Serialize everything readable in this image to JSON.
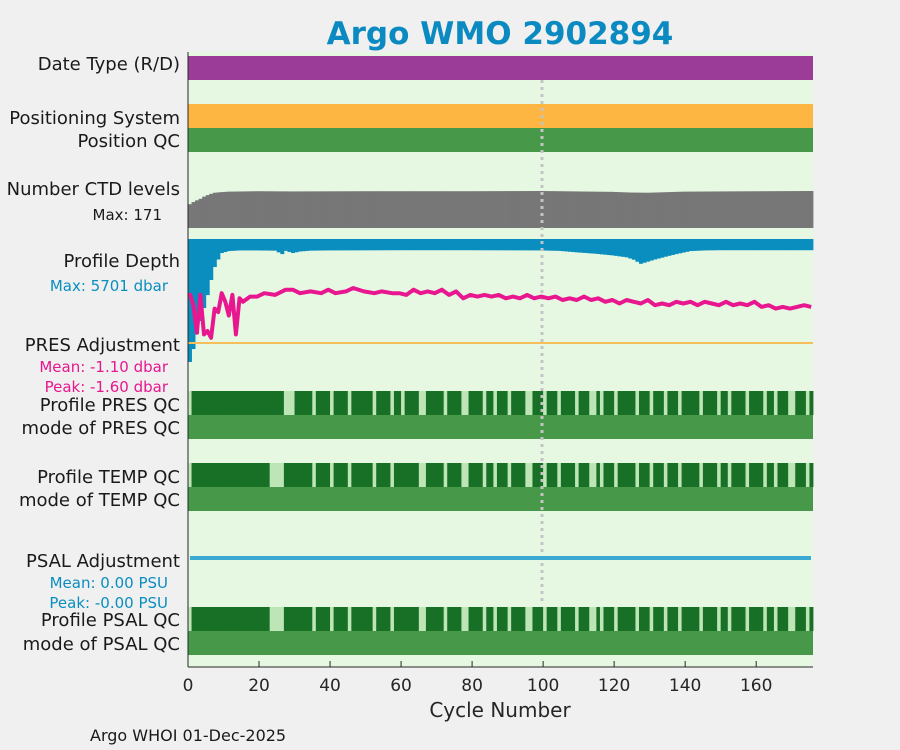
{
  "title": "Argo WMO 2902894",
  "footer": "Argo WHOI 01-Dec-2025",
  "colors": {
    "background": "#f0f0f0",
    "panel": "#e6f8e2",
    "title": "#0a8ac0",
    "date_type": "#9b3d98",
    "positioning": "#fcb641",
    "qc_good": "#48984a",
    "qc_dark": "#177026",
    "qc_light": "#bde5b6",
    "ctd": "#777777",
    "depth": "#0a8ebf",
    "pres_adj": "#e8168f",
    "psal_adj": "#3ba9d1",
    "ref_line": "#f5c05c"
  },
  "labels": {
    "date_type": "Date Type (R/D)",
    "positioning": "Positioning System",
    "position_qc": "Position QC",
    "ctd_levels": "Number CTD levels",
    "ctd_max": "Max: 171",
    "profile_depth": "Profile Depth",
    "depth_max": "Max: 5701 dbar",
    "pres_adj": "PRES Adjustment",
    "pres_mean": "Mean: -1.10 dbar",
    "pres_peak": "Peak: -1.60 dbar",
    "profile_pres_qc": "Profile PRES QC",
    "mode_pres_qc": "mode of PRES QC",
    "profile_temp_qc": "Profile TEMP QC",
    "mode_temp_qc": "mode of TEMP QC",
    "psal_adj": "PSAL Adjustment",
    "psal_mean": "Mean: 0.00 PSU",
    "psal_peak": "Peak: -0.00 PSU",
    "profile_psal_qc": "Profile PSAL QC",
    "mode_psal_qc": "mode of PSAL QC"
  },
  "chart_data": {
    "type": "bar",
    "xlabel": "Cycle Number",
    "xlim": [
      0,
      176
    ],
    "xticks": [
      0,
      20,
      40,
      60,
      80,
      100,
      120,
      140,
      160
    ],
    "cycles": [
      1,
      176
    ],
    "ctd_levels": {
      "max": 171,
      "points": [
        [
          1,
          110
        ],
        [
          2,
          120
        ],
        [
          3,
          128
        ],
        [
          4,
          135
        ],
        [
          5,
          145
        ],
        [
          6,
          152
        ],
        [
          7,
          158
        ],
        [
          8,
          163
        ],
        [
          10,
          166
        ],
        [
          12,
          168
        ],
        [
          20,
          170
        ],
        [
          30,
          169
        ],
        [
          50,
          170
        ],
        [
          80,
          170
        ],
        [
          100,
          171
        ],
        [
          110,
          169
        ],
        [
          120,
          167
        ],
        [
          125,
          164
        ],
        [
          130,
          163
        ],
        [
          140,
          168
        ],
        [
          150,
          169
        ],
        [
          176,
          171
        ]
      ]
    },
    "profile_depth": {
      "max": 5701,
      "points": [
        [
          1,
          5701
        ],
        [
          2,
          5100
        ],
        [
          3,
          4400
        ],
        [
          4,
          3800
        ],
        [
          5,
          3200
        ],
        [
          6,
          2600
        ],
        [
          7,
          1900
        ],
        [
          8,
          1300
        ],
        [
          9,
          950
        ],
        [
          10,
          650
        ],
        [
          12,
          560
        ],
        [
          15,
          530
        ],
        [
          20,
          530
        ],
        [
          25,
          540
        ],
        [
          27,
          700
        ],
        [
          28,
          550
        ],
        [
          30,
          650
        ],
        [
          32,
          580
        ],
        [
          35,
          540
        ],
        [
          40,
          530
        ],
        [
          60,
          520
        ],
        [
          80,
          520
        ],
        [
          100,
          530
        ],
        [
          105,
          550
        ],
        [
          110,
          620
        ],
        [
          115,
          680
        ],
        [
          120,
          760
        ],
        [
          124,
          850
        ],
        [
          126,
          960
        ],
        [
          128,
          1150
        ],
        [
          130,
          1050
        ],
        [
          132,
          950
        ],
        [
          135,
          820
        ],
        [
          138,
          700
        ],
        [
          142,
          560
        ],
        [
          146,
          530
        ],
        [
          150,
          520
        ],
        [
          176,
          520
        ]
      ]
    },
    "pres_adjustment": {
      "mean": -1.1,
      "peak": -1.6,
      "points": [
        [
          1,
          -1.45
        ],
        [
          2,
          -1.1
        ],
        [
          3,
          -0.3
        ],
        [
          4,
          -1.4
        ],
        [
          5,
          -0.25
        ],
        [
          6,
          -0.35
        ],
        [
          7,
          -0.15
        ],
        [
          8,
          -1.0
        ],
        [
          9,
          -0.9
        ],
        [
          10,
          -1.45
        ],
        [
          11,
          -1.2
        ],
        [
          12,
          -0.8
        ],
        [
          13,
          -1.4
        ],
        [
          14,
          -0.25
        ],
        [
          15,
          -1.3
        ],
        [
          16,
          -1.2
        ],
        [
          18,
          -1.35
        ],
        [
          20,
          -1.35
        ],
        [
          22,
          -1.45
        ],
        [
          25,
          -1.4
        ],
        [
          28,
          -1.55
        ],
        [
          30,
          -1.55
        ],
        [
          32,
          -1.45
        ],
        [
          35,
          -1.5
        ],
        [
          38,
          -1.45
        ],
        [
          40,
          -1.55
        ],
        [
          42,
          -1.45
        ],
        [
          45,
          -1.5
        ],
        [
          47,
          -1.6
        ],
        [
          50,
          -1.5
        ],
        [
          53,
          -1.45
        ],
        [
          55,
          -1.5
        ],
        [
          58,
          -1.45
        ],
        [
          60,
          -1.45
        ],
        [
          62,
          -1.4
        ],
        [
          64,
          -1.55
        ],
        [
          66,
          -1.45
        ],
        [
          68,
          -1.5
        ],
        [
          70,
          -1.45
        ],
        [
          72,
          -1.55
        ],
        [
          74,
          -1.4
        ],
        [
          76,
          -1.5
        ],
        [
          78,
          -1.3
        ],
        [
          80,
          -1.4
        ],
        [
          82,
          -1.35
        ],
        [
          84,
          -1.4
        ],
        [
          86,
          -1.35
        ],
        [
          88,
          -1.4
        ],
        [
          90,
          -1.3
        ],
        [
          92,
          -1.35
        ],
        [
          94,
          -1.3
        ],
        [
          96,
          -1.4
        ],
        [
          98,
          -1.3
        ],
        [
          100,
          -1.35
        ],
        [
          102,
          -1.3
        ],
        [
          104,
          -1.35
        ],
        [
          106,
          -1.25
        ],
        [
          108,
          -1.3
        ],
        [
          110,
          -1.25
        ],
        [
          112,
          -1.35
        ],
        [
          114,
          -1.25
        ],
        [
          116,
          -1.3
        ],
        [
          118,
          -1.2
        ],
        [
          120,
          -1.25
        ],
        [
          122,
          -1.15
        ],
        [
          124,
          -1.25
        ],
        [
          126,
          -1.2
        ],
        [
          128,
          -1.15
        ],
        [
          130,
          -1.25
        ],
        [
          132,
          -1.1
        ],
        [
          134,
          -1.15
        ],
        [
          136,
          -1.1
        ],
        [
          138,
          -1.2
        ],
        [
          140,
          -1.15
        ],
        [
          142,
          -1.2
        ],
        [
          144,
          -1.1
        ],
        [
          146,
          -1.2
        ],
        [
          148,
          -1.15
        ],
        [
          150,
          -1.1
        ],
        [
          152,
          -1.2
        ],
        [
          154,
          -1.1
        ],
        [
          156,
          -1.15
        ],
        [
          158,
          -1.1
        ],
        [
          160,
          -1.2
        ],
        [
          162,
          -1.05
        ],
        [
          164,
          -1.1
        ],
        [
          166,
          -1.0
        ],
        [
          168,
          -1.05
        ],
        [
          170,
          -1.0
        ],
        [
          172,
          -1.05
        ],
        [
          174,
          -1.1
        ],
        [
          176,
          -1.05
        ]
      ]
    },
    "psal_adjustment": {
      "mean": 0.0,
      "peak": -0.0,
      "value": 0.0
    },
    "qc_light_cycles": {
      "pres": [
        1,
        28,
        29,
        30,
        36,
        41,
        46,
        53,
        58,
        61,
        66,
        67,
        73,
        78,
        79,
        84,
        87,
        91,
        96,
        97,
        101,
        105,
        110,
        114,
        115,
        117,
        121,
        127,
        131,
        135,
        139,
        145,
        150,
        153,
        158,
        163,
        166,
        170,
        171,
        175
      ],
      "temp": [
        1,
        24,
        25,
        26,
        27,
        36,
        41,
        46,
        53,
        58,
        66,
        67,
        73,
        78,
        79,
        84,
        87,
        91,
        96,
        97,
        101,
        105,
        110,
        114,
        115,
        117,
        121,
        127,
        131,
        135,
        139,
        145,
        150,
        153,
        158,
        163,
        166,
        170,
        171,
        175
      ],
      "psal": [
        1,
        24,
        25,
        26,
        27,
        36,
        41,
        46,
        53,
        58,
        66,
        67,
        73,
        78,
        79,
        84,
        87,
        91,
        96,
        97,
        101,
        105,
        110,
        114,
        115,
        117,
        121,
        127,
        131,
        135,
        139,
        145,
        150,
        153,
        158,
        163,
        166,
        170,
        171,
        175
      ]
    },
    "grid": false
  }
}
